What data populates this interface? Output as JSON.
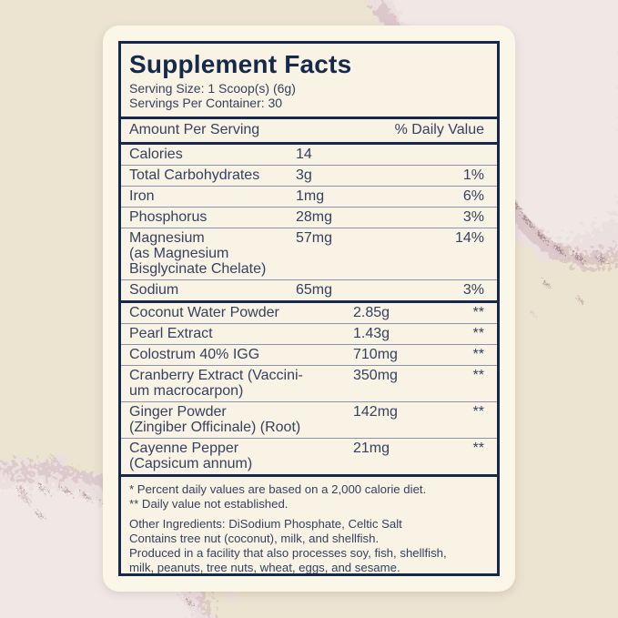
{
  "label": {
    "title": "Supplement Facts",
    "serving_size": "Serving Size: 1 Scoop(s) (6g)",
    "servings_per_container": "Servings Per Container: 30",
    "columns": {
      "amount_header": "Amount Per Serving",
      "dv_header": "% Daily Value"
    },
    "nutrients": [
      {
        "lines": [
          "Calories"
        ],
        "amount": "14",
        "dv": ""
      },
      {
        "lines": [
          "Total Carbohydrates"
        ],
        "amount": "3g",
        "dv": "1%"
      },
      {
        "lines": [
          "Iron"
        ],
        "amount": "1mg",
        "dv": "6%"
      },
      {
        "lines": [
          "Phosphorus"
        ],
        "amount": "28mg",
        "dv": "3%"
      },
      {
        "lines": [
          "Magnesium",
          "(as Magnesium",
          "Bisglycinate Chelate)"
        ],
        "amount": "57mg",
        "dv": "14%"
      },
      {
        "lines": [
          "Sodium"
        ],
        "amount": "65mg",
        "dv": "3%"
      }
    ],
    "ingredients": [
      {
        "lines": [
          "Coconut Water Powder"
        ],
        "amount": "2.85g",
        "dv": "**"
      },
      {
        "lines": [
          "Pearl Extract"
        ],
        "amount": "1.43g",
        "dv": "**"
      },
      {
        "lines": [
          "Colostrum 40% IGG"
        ],
        "amount": "710mg",
        "dv": "**"
      },
      {
        "lines": [
          "Cranberry Extract (Vaccini-",
          "um macrocarpon)"
        ],
        "amount": "350mg",
        "dv": "**"
      },
      {
        "lines": [
          "Ginger Powder",
          "(Zingiber Officinale) (Root)"
        ],
        "amount": "142mg",
        "dv": "**"
      },
      {
        "lines": [
          "Cayenne Pepper",
          "(Capsicum annum)"
        ],
        "amount": "21mg",
        "dv": "**"
      }
    ],
    "footnotes": [
      "* Percent daily values are based on a 2,000 calorie diet.",
      "** Daily value not established."
    ],
    "other_ingredients_lines": [
      "Other Ingredients: DiSodium Phosphate, Celtic Salt",
      "Contains tree nut (coconut), milk, and shellfish.",
      "Produced in a facility that also processes soy, fish, shellfish,",
      "milk, peanuts, tree nuts, wheat, eggs, and sesame."
    ]
  },
  "colors": {
    "navy": "#16294a",
    "text": "#35415f",
    "rule-thin": "#8b95aa",
    "card": "#faf6e8",
    "panel": "#f8f3e4",
    "background": "#ece3d1",
    "powder-light": "#ecdfe0",
    "powder-lighter": "#f2e9e7",
    "powder-mid": "#d2b9be",
    "powder-dark": "#7c5a56"
  }
}
